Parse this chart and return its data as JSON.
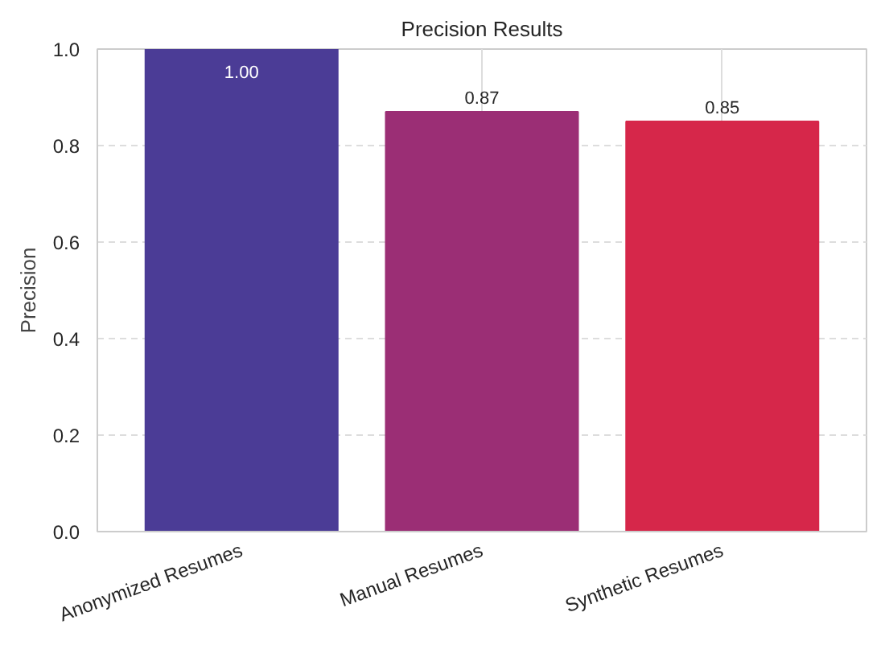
{
  "chart_data": {
    "type": "bar",
    "title": "Precision Results",
    "ylabel": "Precision",
    "categories": [
      "Anonymized Resumes",
      "Manual Resumes",
      "Synthetic Resumes"
    ],
    "values": [
      1.0,
      0.87,
      0.85
    ],
    "colors": [
      "#4b3c96",
      "#9b2e75",
      "#d6274a"
    ],
    "value_labels": [
      "1.00",
      "0.87",
      "0.85"
    ],
    "ylim": [
      0,
      1
    ],
    "yticks": [
      {
        "value": 0,
        "label": "0.0"
      },
      0.2,
      0.4,
      0.6,
      0.8,
      {
        "value": 1,
        "label": "1.0"
      }
    ],
    "grid": true
  }
}
